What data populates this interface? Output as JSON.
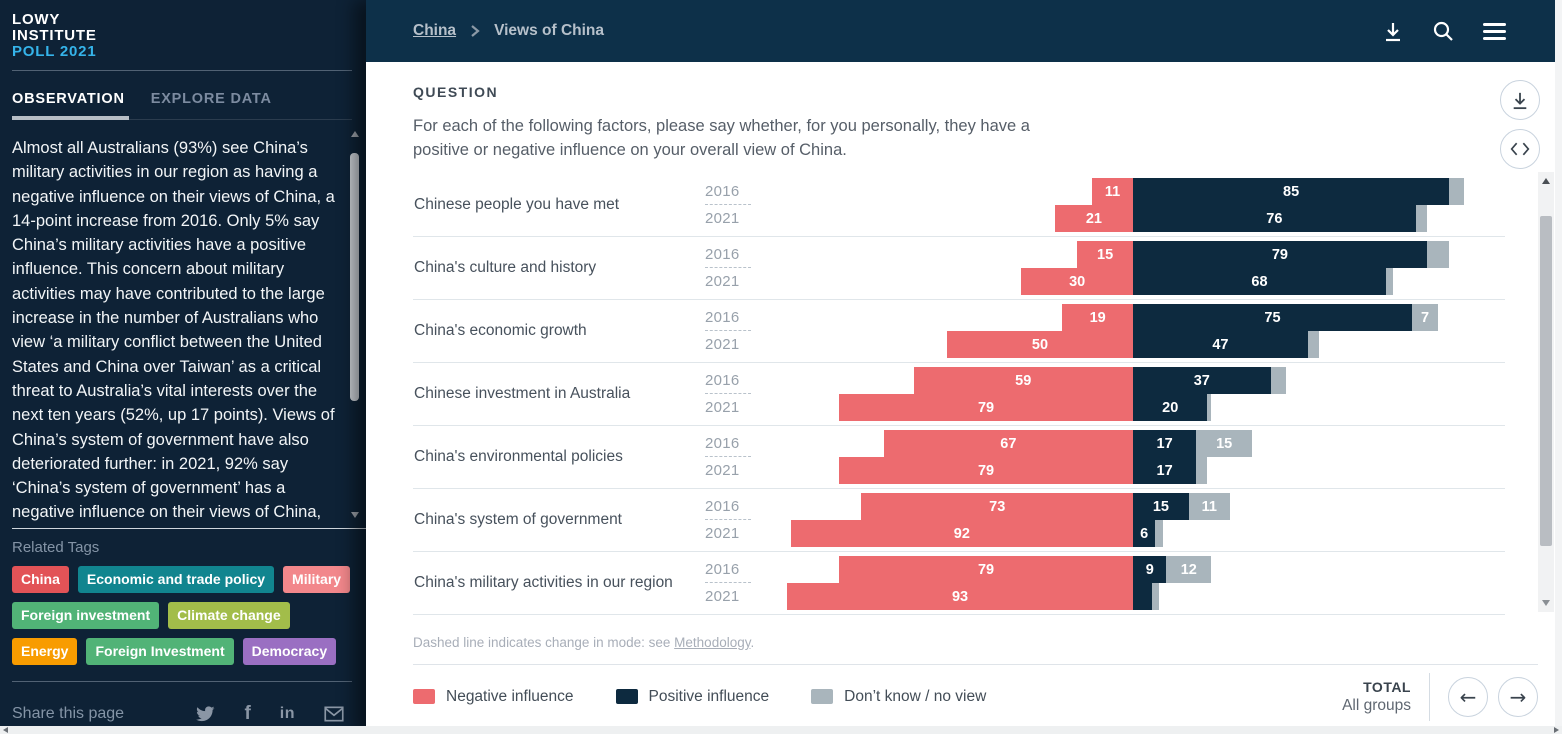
{
  "sidebar": {
    "logo_lines": [
      "LOWY",
      "INSTITUTE",
      "POLL 2021"
    ],
    "tabs": [
      {
        "label": "OBSERVATION",
        "active": true
      },
      {
        "label": "EXPLORE DATA",
        "active": false
      }
    ],
    "observation_text": "Almost all Australians (93%) see China’s military activities in our region as having a negative influence on their views of China, a 14-point increase from 2016. Only 5% say China’s military activities have a positive influence. This concern about military activities may have contributed to the large increase in the number of Australians who view ‘a military conflict between the United States and China over Taiwan’ as a critical threat to Australia’s vital interests over the next ten years (52%, up 17 points). Views of China’s system of government have also deteriorated further: in 2021, 92% say ‘China’s system of government’ has a negative influence on their views of China,",
    "related_tags_label": "Related Tags",
    "tags": [
      {
        "label": "China",
        "color": "#e25357"
      },
      {
        "label": "Economic and trade policy",
        "color": "#11858f"
      },
      {
        "label": "Military",
        "color": "#f2878b"
      },
      {
        "label": "Foreign investment",
        "color": "#51b377"
      },
      {
        "label": "Climate change",
        "color": "#a2bd4a"
      },
      {
        "label": "Energy",
        "color": "#f89c00"
      },
      {
        "label": "Foreign Investment",
        "color": "#51b377"
      },
      {
        "label": "Democracy",
        "color": "#9a6fc2"
      }
    ],
    "share_label": "Share this page",
    "share_icons": [
      "twitter-icon",
      "facebook-icon",
      "linkedin-icon",
      "email-icon"
    ]
  },
  "header": {
    "breadcrumb": [
      {
        "label": "China"
      },
      {
        "label": "Views of China"
      }
    ],
    "icons": [
      "download-icon",
      "search-icon",
      "menu-icon"
    ]
  },
  "question": {
    "heading": "QUESTION",
    "text": "For each of the following factors, please say whether, for you personally, they have a positive or negative influence on your overall view of China."
  },
  "chart_data": {
    "type": "bar",
    "variant": "horizontal-diverging-stacked",
    "axis_max": 100,
    "colors": {
      "negative": "#ed6b6f",
      "positive": "#0d2a3f",
      "dont_know": "#a9b5bc"
    },
    "legend": [
      {
        "label": "Negative influence",
        "key": "negative"
      },
      {
        "label": "Positive influence",
        "key": "positive"
      },
      {
        "label": "Don’t know / no view",
        "key": "dont_know"
      }
    ],
    "rows": [
      {
        "factor": "Chinese people you have met",
        "bars": [
          {
            "year": "2016",
            "negative": 11,
            "positive": 85,
            "dont_know": 4,
            "labels": {
              "negative": "11",
              "positive": "85",
              "dont_know": ""
            }
          },
          {
            "year": "2021",
            "negative": 21,
            "positive": 76,
            "dont_know": 3,
            "labels": {
              "negative": "21",
              "positive": "76",
              "dont_know": ""
            }
          }
        ]
      },
      {
        "factor": "China's culture and history",
        "bars": [
          {
            "year": "2016",
            "negative": 15,
            "positive": 79,
            "dont_know": 6,
            "labels": {
              "negative": "15",
              "positive": "79",
              "dont_know": ""
            }
          },
          {
            "year": "2021",
            "negative": 30,
            "positive": 68,
            "dont_know": 2,
            "labels": {
              "negative": "30",
              "positive": "68",
              "dont_know": ""
            }
          }
        ]
      },
      {
        "factor": "China's economic growth",
        "bars": [
          {
            "year": "2016",
            "negative": 19,
            "positive": 75,
            "dont_know": 7,
            "labels": {
              "negative": "19",
              "positive": "75",
              "dont_know": "7"
            }
          },
          {
            "year": "2021",
            "negative": 50,
            "positive": 47,
            "dont_know": 3,
            "labels": {
              "negative": "50",
              "positive": "47",
              "dont_know": ""
            }
          }
        ]
      },
      {
        "factor": "Chinese investment in Australia",
        "bars": [
          {
            "year": "2016",
            "negative": 59,
            "positive": 37,
            "dont_know": 4,
            "labels": {
              "negative": "59",
              "positive": "37",
              "dont_know": ""
            }
          },
          {
            "year": "2021",
            "negative": 79,
            "positive": 20,
            "dont_know": 1,
            "labels": {
              "negative": "79",
              "positive": "20",
              "dont_know": ""
            }
          }
        ]
      },
      {
        "factor": "China's environmental policies",
        "bars": [
          {
            "year": "2016",
            "negative": 67,
            "positive": 17,
            "dont_know": 15,
            "labels": {
              "negative": "67",
              "positive": "17",
              "dont_know": "15"
            }
          },
          {
            "year": "2021",
            "negative": 79,
            "positive": 17,
            "dont_know": 3,
            "labels": {
              "negative": "79",
              "positive": "17",
              "dont_know": ""
            }
          }
        ]
      },
      {
        "factor": "China's system of government",
        "bars": [
          {
            "year": "2016",
            "negative": 73,
            "positive": 15,
            "dont_know": 11,
            "labels": {
              "negative": "73",
              "positive": "15",
              "dont_know": "11"
            }
          },
          {
            "year": "2021",
            "negative": 92,
            "positive": 6,
            "dont_know": 2,
            "labels": {
              "negative": "92",
              "positive": "6",
              "dont_know": ""
            }
          }
        ]
      },
      {
        "factor": "China's military activities in our region",
        "bars": [
          {
            "year": "2016",
            "negative": 79,
            "positive": 9,
            "dont_know": 12,
            "labels": {
              "negative": "79",
              "positive": "9",
              "dont_know": "12"
            }
          },
          {
            "year": "2021",
            "negative": 93,
            "positive": 5,
            "dont_know": 2,
            "labels": {
              "negative": "93",
              "positive": "",
              "dont_know": ""
            }
          }
        ]
      }
    ]
  },
  "footnote": {
    "text_before": "Dashed line indicates change in mode: see ",
    "link_label": "Methodology",
    "text_after": "."
  },
  "footer": {
    "total_label": "TOTAL",
    "group_label": "All groups"
  }
}
